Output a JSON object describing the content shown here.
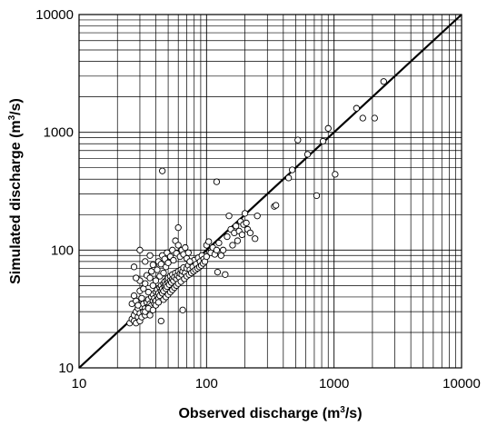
{
  "chart_data": {
    "type": "scatter",
    "title": "",
    "xlabel": "Observed discharge (m",
    "xlabel_sup": "3",
    "xlabel_end": "/s)",
    "ylabel": "Simulated discharge (m",
    "ylabel_sup": "3",
    "ylabel_end": "/s)",
    "xscale": "log",
    "yscale": "log",
    "xlim": [
      10,
      10000
    ],
    "ylim": [
      10,
      10000
    ],
    "grid": true,
    "legend": "none",
    "xticks": [
      "10",
      "100",
      "1000",
      "10000"
    ],
    "yticks": [
      "10",
      "100",
      "1000",
      "10000"
    ],
    "reference_line": {
      "x": [
        10,
        10000
      ],
      "y": [
        10,
        10000
      ],
      "style": "solid",
      "color": "#000000"
    },
    "colors": {
      "marker_edge": "#000000",
      "marker_fill": "#ffffff",
      "grid": "#000000",
      "line": "#000000"
    },
    "series": [
      {
        "points": [
          [
            25,
            24
          ],
          [
            26,
            26
          ],
          [
            27,
            25
          ],
          [
            27,
            28
          ],
          [
            28,
            24
          ],
          [
            28,
            30
          ],
          [
            29,
            27
          ],
          [
            29,
            32
          ],
          [
            30,
            25
          ],
          [
            30,
            29
          ],
          [
            31,
            33
          ],
          [
            31,
            27
          ],
          [
            32,
            30
          ],
          [
            32,
            35
          ],
          [
            33,
            28
          ],
          [
            33,
            32
          ],
          [
            34,
            36
          ],
          [
            34,
            30
          ],
          [
            35,
            33
          ],
          [
            35,
            38
          ],
          [
            36,
            31
          ],
          [
            36,
            35
          ],
          [
            37,
            40
          ],
          [
            37,
            34
          ],
          [
            38,
            37
          ],
          [
            38,
            42
          ],
          [
            39,
            35
          ],
          [
            39,
            39
          ],
          [
            40,
            44
          ],
          [
            40,
            37
          ],
          [
            41,
            41
          ],
          [
            41,
            46
          ],
          [
            42,
            39
          ],
          [
            42,
            43
          ],
          [
            43,
            48
          ],
          [
            43,
            41
          ],
          [
            44,
            45
          ],
          [
            44,
            50
          ],
          [
            45,
            43
          ],
          [
            45,
            47
          ],
          [
            46,
            52
          ],
          [
            46,
            45
          ],
          [
            47,
            49
          ],
          [
            47,
            54
          ],
          [
            48,
            47
          ],
          [
            48,
            51
          ],
          [
            49,
            56
          ],
          [
            49,
            49
          ],
          [
            50,
            53
          ],
          [
            50,
            58
          ],
          [
            51,
            51
          ],
          [
            52,
            55
          ],
          [
            52,
            60
          ],
          [
            53,
            53
          ],
          [
            54,
            57
          ],
          [
            54,
            62
          ],
          [
            55,
            55
          ],
          [
            56,
            59
          ],
          [
            57,
            64
          ],
          [
            58,
            57
          ],
          [
            59,
            61
          ],
          [
            60,
            66
          ],
          [
            61,
            59
          ],
          [
            62,
            63
          ],
          [
            63,
            68
          ],
          [
            64,
            62
          ],
          [
            65,
            66
          ],
          [
            66,
            71
          ],
          [
            68,
            64
          ],
          [
            70,
            70
          ],
          [
            72,
            74
          ],
          [
            74,
            68
          ],
          [
            76,
            78
          ],
          [
            78,
            72
          ],
          [
            80,
            82
          ],
          [
            83,
            76
          ],
          [
            86,
            86
          ],
          [
            89,
            80
          ],
          [
            92,
            90
          ],
          [
            95,
            84
          ],
          [
            26,
            35
          ],
          [
            27,
            41
          ],
          [
            28,
            37
          ],
          [
            29,
            34
          ],
          [
            30,
            45
          ],
          [
            30,
            55
          ],
          [
            31,
            39
          ],
          [
            32,
            47
          ],
          [
            33,
            52
          ],
          [
            34,
            61
          ],
          [
            35,
            44
          ],
          [
            36,
            58
          ],
          [
            37,
            66
          ],
          [
            38,
            50
          ],
          [
            39,
            72
          ],
          [
            40,
            55
          ],
          [
            41,
            68
          ],
          [
            42,
            80
          ],
          [
            43,
            60
          ],
          [
            44,
            76
          ],
          [
            45,
            90
          ],
          [
            46,
            64
          ],
          [
            47,
            84
          ],
          [
            48,
            72
          ],
          [
            49,
            95
          ],
          [
            50,
            78
          ],
          [
            52,
            88
          ],
          [
            54,
            100
          ],
          [
            55,
            82
          ],
          [
            57,
            120
          ],
          [
            58,
            94
          ],
          [
            60,
            110
          ],
          [
            60,
            155
          ],
          [
            62,
            88
          ],
          [
            64,
            100
          ],
          [
            66,
            92
          ],
          [
            68,
            105
          ],
          [
            70,
            85
          ],
          [
            72,
            95
          ],
          [
            74,
            80
          ],
          [
            30,
            100
          ],
          [
            28,
            58
          ],
          [
            27,
            72
          ],
          [
            33,
            80
          ],
          [
            36,
            90
          ],
          [
            38,
            75
          ],
          [
            33,
            30
          ],
          [
            35,
            32
          ],
          [
            36,
            28
          ],
          [
            38,
            31
          ],
          [
            40,
            34
          ],
          [
            42,
            36
          ],
          [
            44,
            25
          ],
          [
            46,
            38
          ],
          [
            48,
            40
          ],
          [
            50,
            42
          ],
          [
            52,
            44
          ],
          [
            54,
            46
          ],
          [
            56,
            48
          ],
          [
            58,
            50
          ],
          [
            60,
            52
          ],
          [
            63,
            54
          ],
          [
            65,
            31
          ],
          [
            67,
            57
          ],
          [
            70,
            60
          ],
          [
            73,
            62
          ],
          [
            76,
            64
          ],
          [
            79,
            66
          ],
          [
            82,
            68
          ],
          [
            85,
            70
          ],
          [
            88,
            72
          ],
          [
            91,
            74
          ],
          [
            94,
            77
          ],
          [
            97,
            80
          ],
          [
            100,
            88
          ],
          [
            100,
            110
          ],
          [
            104,
            118
          ],
          [
            108,
            95
          ],
          [
            112,
            105
          ],
          [
            116,
            92
          ],
          [
            120,
            100
          ],
          [
            122,
            65
          ],
          [
            125,
            115
          ],
          [
            130,
            90
          ],
          [
            135,
            100
          ],
          [
            140,
            62
          ],
          [
            145,
            130
          ],
          [
            150,
            195
          ],
          [
            155,
            150
          ],
          [
            160,
            110
          ],
          [
            165,
            140
          ],
          [
            170,
            160
          ],
          [
            175,
            120
          ],
          [
            180,
            145
          ],
          [
            185,
            175
          ],
          [
            190,
            135
          ],
          [
            195,
            165
          ],
          [
            200,
            205
          ],
          [
            205,
            170
          ],
          [
            210,
            150
          ],
          [
            220,
            140
          ],
          [
            240,
            125
          ],
          [
            250,
            195
          ],
          [
            45,
            470
          ],
          [
            120,
            380
          ],
          [
            340,
            235
          ],
          [
            350,
            240
          ],
          [
            440,
            410
          ],
          [
            470,
            480
          ],
          [
            520,
            860
          ],
          [
            620,
            650
          ],
          [
            730,
            290
          ],
          [
            820,
            840
          ],
          [
            900,
            1080
          ],
          [
            1020,
            440
          ],
          [
            1500,
            1600
          ],
          [
            1680,
            1320
          ],
          [
            2080,
            1320
          ],
          [
            2450,
            2700
          ]
        ]
      }
    ]
  }
}
